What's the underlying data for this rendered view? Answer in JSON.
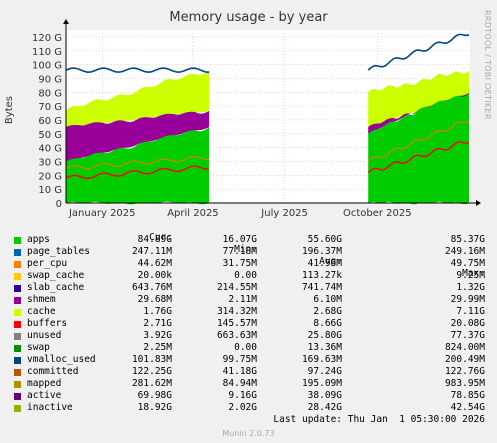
{
  "title": "Memory usage - by year",
  "rrd_tag": "RRDTOOL / TOBI OETIKER",
  "chart_data": {
    "type": "area",
    "title": "Memory usage - by year",
    "ylabel": "Bytes",
    "ylim": [
      0,
      125
    ],
    "y_unit": "G",
    "yticks": [
      "0",
      "10 G",
      "20 G",
      "30 G",
      "40 G",
      "50 G",
      "60 G",
      "70 G",
      "80 G",
      "90 G",
      "100 G",
      "110 G",
      "120 G"
    ],
    "ytick_values": [
      0,
      10,
      20,
      30,
      40,
      50,
      60,
      70,
      80,
      90,
      100,
      110,
      120
    ],
    "xlim": [
      "2024-11-26",
      "2026-01-01"
    ],
    "xticks": [
      "January 2025",
      "April 2025",
      "July 2025",
      "October 2025"
    ],
    "xtick_dates": [
      "2025-01-01",
      "2025-04-01",
      "2025-07-01",
      "2025-10-01"
    ],
    "grid": true,
    "data_intervals": [
      [
        "2024-11-26",
        "2025-04-17"
      ],
      [
        "2025-09-22",
        "2025-12-31"
      ]
    ],
    "series_approx": {
      "apps": {
        "early": [
          30,
          55
        ],
        "late": [
          50,
          85
        ]
      },
      "buffers": {
        "early": [
          55,
          67
        ],
        "late": [
          55,
          80
        ]
      },
      "unused": {
        "early": [
          67,
          96
        ],
        "late": [
          80,
          96
        ]
      },
      "committed": {
        "early": [
          96,
          96
        ],
        "late": [
          96,
          123
        ]
      },
      "inactive": {
        "early": [
          18,
          26
        ],
        "late": [
          22,
          45
        ]
      },
      "active": {
        "early": [
          25,
          33
        ],
        "late": [
          30,
          60
        ]
      }
    }
  },
  "legend": {
    "headers": {
      "cur": "Cur:",
      "min": "Min:",
      "avg": "Avg:",
      "max": "Max:"
    },
    "rows": [
      {
        "name": "apps",
        "color": "#00cc00",
        "cur": "84.89G",
        "min": "16.07G",
        "avg": "55.60G",
        "max": "85.37G"
      },
      {
        "name": "page_tables",
        "color": "#0066b3",
        "cur": "247.11M",
        "min": "77.18M",
        "avg": "196.37M",
        "max": "249.16M"
      },
      {
        "name": "per_cpu",
        "color": "#ff8000",
        "cur": "44.62M",
        "min": "31.75M",
        "avg": "41.96M",
        "max": "49.75M"
      },
      {
        "name": "swap_cache",
        "color": "#ffcc00",
        "cur": "20.00k",
        "min": "0.00",
        "avg": "113.27k",
        "max": "9.25M"
      },
      {
        "name": "slab_cache",
        "color": "#330099",
        "cur": "643.76M",
        "min": "214.55M",
        "avg": "741.74M",
        "max": "1.32G"
      },
      {
        "name": "shmem",
        "color": "#990099",
        "cur": "29.68M",
        "min": "2.11M",
        "avg": "6.10M",
        "max": "29.99M"
      },
      {
        "name": "cache",
        "color": "#ccff00",
        "cur": "1.76G",
        "min": "314.32M",
        "avg": "2.68G",
        "max": "7.11G"
      },
      {
        "name": "buffers",
        "color": "#ff0000",
        "cur": "2.71G",
        "min": "145.57M",
        "avg": "8.66G",
        "max": "20.08G"
      },
      {
        "name": "unused",
        "color": "#808080",
        "cur": "3.92G",
        "min": "663.63M",
        "avg": "25.80G",
        "max": "77.37G"
      },
      {
        "name": "swap",
        "color": "#008f00",
        "cur": "2.25M",
        "min": "0.00",
        "avg": "13.36M",
        "max": "824.00M"
      },
      {
        "name": "vmalloc_used",
        "color": "#00487d",
        "cur": "101.83M",
        "min": "99.75M",
        "avg": "169.63M",
        "max": "200.49M"
      },
      {
        "name": "committed",
        "color": "#b35a00",
        "cur": "122.25G",
        "min": "41.18G",
        "avg": "97.24G",
        "max": "122.76G"
      },
      {
        "name": "mapped",
        "color": "#b38f00",
        "cur": "281.62M",
        "min": "84.94M",
        "avg": "195.09M",
        "max": "983.95M"
      },
      {
        "name": "active",
        "color": "#6b006b",
        "cur": "69.98G",
        "min": "9.16G",
        "avg": "38.09G",
        "max": "78.85G"
      },
      {
        "name": "inactive",
        "color": "#8fb300",
        "cur": "18.92G",
        "min": "2.02G",
        "avg": "28.42G",
        "max": "42.54G"
      }
    ]
  },
  "last_update": "Last update: Thu Jan  1 05:30:00 2026",
  "footer": "Munin 2.0.73"
}
